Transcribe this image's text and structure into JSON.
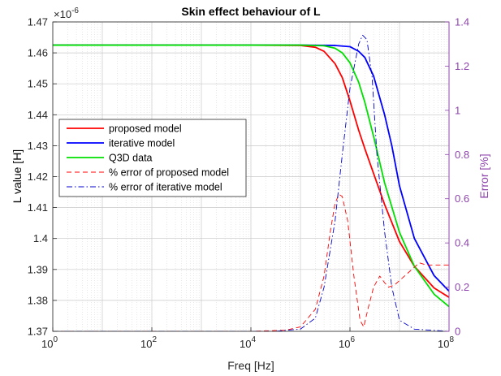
{
  "chart_data": {
    "type": "line",
    "title": "Skin effect behaviour of L",
    "xlabel": "Freq [Hz]",
    "ylabel_left": "L value [H]",
    "ylabel_right": "Error [%]",
    "x_scale": "log",
    "xlim": [
      1,
      100000000
    ],
    "x_ticks": [
      {
        "value": 1,
        "base": "10",
        "exp": "0"
      },
      {
        "value": 100,
        "base": "10",
        "exp": "2"
      },
      {
        "value": 10000,
        "base": "10",
        "exp": "4"
      },
      {
        "value": 1000000,
        "base": "10",
        "exp": "6"
      },
      {
        "value": 100000000,
        "base": "10",
        "exp": "8"
      }
    ],
    "ylim_left": [
      1.37,
      1.47
    ],
    "y_ticks_left": [
      "1.37",
      "1.38",
      "1.39",
      "1.4",
      "1.41",
      "1.42",
      "1.43",
      "1.44",
      "1.45",
      "1.46",
      "1.47"
    ],
    "y_multiplier": {
      "base": "×10",
      "exp": "-6"
    },
    "ylim_right": [
      0,
      1.4
    ],
    "y_ticks_right": [
      "0",
      "0.2",
      "0.4",
      "0.6",
      "0.8",
      "1",
      "1.2",
      "1.4"
    ],
    "grid": true,
    "legend_position": "middle-left",
    "series": [
      {
        "name": "proposed model",
        "axis": "left",
        "color": "#ff0000",
        "style": "solid",
        "points": [
          [
            1,
            1.4625
          ],
          [
            10000,
            1.4625
          ],
          [
            100000,
            1.4624
          ],
          [
            200000,
            1.4618
          ],
          [
            300000,
            1.4605
          ],
          [
            500000,
            1.4565
          ],
          [
            700000,
            1.452
          ],
          [
            1000000,
            1.4445
          ],
          [
            1500000,
            1.435
          ],
          [
            2000000,
            1.429
          ],
          [
            3000000,
            1.421
          ],
          [
            5000000,
            1.411
          ],
          [
            10000000,
            1.399
          ],
          [
            20000000,
            1.391
          ],
          [
            50000000,
            1.384
          ],
          [
            100000000,
            1.381
          ]
        ]
      },
      {
        "name": "iterative model",
        "axis": "left",
        "color": "#0000ff",
        "style": "solid",
        "points": [
          [
            1,
            1.4625
          ],
          [
            100000,
            1.4625
          ],
          [
            500000,
            1.4624
          ],
          [
            1000000,
            1.462
          ],
          [
            1500000,
            1.4605
          ],
          [
            2000000,
            1.4585
          ],
          [
            3000000,
            1.4525
          ],
          [
            5000000,
            1.44
          ],
          [
            7000000,
            1.43
          ],
          [
            10000000,
            1.417
          ],
          [
            20000000,
            1.4
          ],
          [
            50000000,
            1.388
          ],
          [
            100000000,
            1.383
          ]
        ]
      },
      {
        "name": "Q3D data",
        "axis": "left",
        "color": "#00e000",
        "style": "solid",
        "points": [
          [
            1,
            1.4625
          ],
          [
            100000,
            1.4625
          ],
          [
            300000,
            1.4623
          ],
          [
            500000,
            1.4615
          ],
          [
            700000,
            1.46
          ],
          [
            1000000,
            1.4568
          ],
          [
            1500000,
            1.4505
          ],
          [
            2000000,
            1.444
          ],
          [
            3000000,
            1.433
          ],
          [
            5000000,
            1.418
          ],
          [
            10000000,
            1.402
          ],
          [
            20000000,
            1.391
          ],
          [
            50000000,
            1.382
          ],
          [
            100000000,
            1.378
          ]
        ]
      },
      {
        "name": "% error of proposed model",
        "axis": "right",
        "color": "#ff0000",
        "style": "dashed",
        "points": [
          [
            1,
            0
          ],
          [
            10000,
            0
          ],
          [
            50000,
            0.005
          ],
          [
            100000,
            0.02
          ],
          [
            200000,
            0.1
          ],
          [
            300000,
            0.25
          ],
          [
            400000,
            0.45
          ],
          [
            500000,
            0.58
          ],
          [
            600000,
            0.62
          ],
          [
            700000,
            0.61
          ],
          [
            900000,
            0.5
          ],
          [
            1200000,
            0.25
          ],
          [
            1600000,
            0.05
          ],
          [
            1900000,
            0.02
          ],
          [
            2300000,
            0.1
          ],
          [
            3000000,
            0.2
          ],
          [
            4000000,
            0.25
          ],
          [
            5000000,
            0.22
          ],
          [
            6000000,
            0.2
          ],
          [
            8000000,
            0.21
          ],
          [
            10000000,
            0.23
          ],
          [
            20000000,
            0.29
          ],
          [
            25000000,
            0.31
          ],
          [
            35000000,
            0.3
          ],
          [
            100000000,
            0.3
          ]
        ]
      },
      {
        "name": "% error of iterative model",
        "axis": "right",
        "color": "#0000cc",
        "style": "dashdot",
        "points": [
          [
            1,
            0
          ],
          [
            30000,
            0
          ],
          [
            100000,
            0.01
          ],
          [
            200000,
            0.06
          ],
          [
            300000,
            0.2
          ],
          [
            500000,
            0.5
          ],
          [
            700000,
            0.8
          ],
          [
            1000000,
            1.1
          ],
          [
            1500000,
            1.3
          ],
          [
            1800000,
            1.34
          ],
          [
            2200000,
            1.32
          ],
          [
            2800000,
            1.15
          ],
          [
            3500000,
            0.8
          ],
          [
            5000000,
            0.45
          ],
          [
            7000000,
            0.2
          ],
          [
            10000000,
            0.05
          ],
          [
            20000000,
            0.01
          ],
          [
            100000000,
            0
          ]
        ]
      }
    ]
  }
}
